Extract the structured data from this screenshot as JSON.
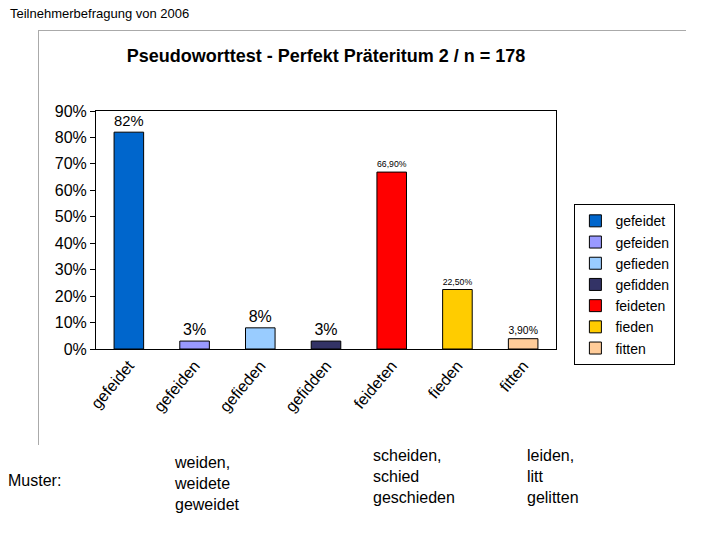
{
  "header": "Teilnehmerbefragung von 2006",
  "chart_data": {
    "type": "bar",
    "title": "Pseudoworttest - Perfekt Präteritum 2 / n = 178",
    "categories": [
      "gefeidet",
      "gefeiden",
      "gefieden",
      "gefidden",
      "feideten",
      "fieden",
      "fitten"
    ],
    "values": [
      82,
      3,
      8,
      3,
      66.9,
      22.5,
      3.9
    ],
    "value_labels": [
      "82%",
      "3%",
      "8%",
      "3%",
      "66,90%",
      "22,50%",
      "3,90%"
    ],
    "colors": [
      "#0066cc",
      "#9999ff",
      "#99ccff",
      "#333366",
      "#ff0000",
      "#ffcc00",
      "#ffcc99"
    ],
    "ylim": [
      0,
      90
    ],
    "yticks": [
      {
        "value": 0,
        "label": "0%"
      },
      {
        "value": 10,
        "label": "10%"
      },
      {
        "value": 20,
        "label": "20%"
      },
      {
        "value": 30,
        "label": "30%"
      },
      {
        "value": 40,
        "label": "40%"
      },
      {
        "value": 50,
        "label": "50%"
      },
      {
        "value": 60,
        "label": "60%"
      },
      {
        "value": 70,
        "label": "70%"
      },
      {
        "value": 80,
        "label": "80%"
      },
      {
        "value": 90,
        "label": "90%"
      }
    ],
    "grid": false,
    "legend": "right",
    "data_labels": true
  },
  "footer": {
    "label": "Muster:",
    "patterns": [
      [
        "weiden,",
        "weidete",
        "geweidet"
      ],
      [
        "scheiden,",
        "schied",
        "geschieden"
      ],
      [
        "leiden,",
        "litt",
        "gelitten"
      ]
    ]
  }
}
